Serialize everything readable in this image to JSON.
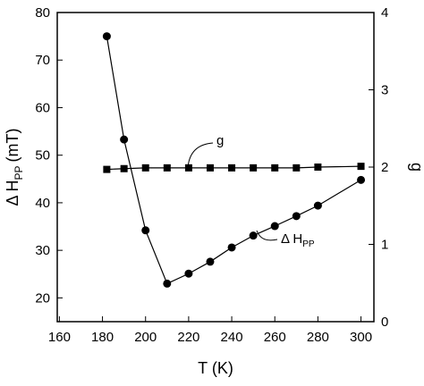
{
  "chart_data": {
    "type": "line",
    "xlabel": "T (K)",
    "ylabel": {
      "main": "Δ H",
      "sub": "PP",
      "unit": "(mT)"
    },
    "y2label": "g",
    "xlim": [
      159,
      306
    ],
    "xticks": [
      160,
      180,
      200,
      220,
      240,
      260,
      280,
      300
    ],
    "ylim": [
      15,
      80
    ],
    "yticks": [
      20,
      30,
      40,
      50,
      60,
      70,
      80
    ],
    "y2lim": [
      0,
      4
    ],
    "y2ticks": [
      0,
      1,
      2,
      3,
      4
    ],
    "series": [
      {
        "name": "g",
        "marker": "square",
        "color": "#000000",
        "axis": "y2",
        "x": [
          182,
          190,
          200,
          210,
          220,
          230,
          240,
          250,
          260,
          270,
          280,
          300
        ],
        "values": [
          1.97,
          1.98,
          1.99,
          1.99,
          1.99,
          1.99,
          1.99,
          1.99,
          1.99,
          1.99,
          2.0,
          2.01
        ]
      },
      {
        "name": "Δ H",
        "name_sub": "PP",
        "marker": "circle",
        "color": "#000000",
        "x": [
          182,
          190,
          200,
          210,
          220,
          230,
          240,
          250,
          260,
          270,
          280,
          300
        ],
        "values": [
          75,
          53.3,
          34.2,
          23,
          25.1,
          27.6,
          30.6,
          33.1,
          35.1,
          37.2,
          39.4,
          44.8
        ]
      }
    ]
  }
}
